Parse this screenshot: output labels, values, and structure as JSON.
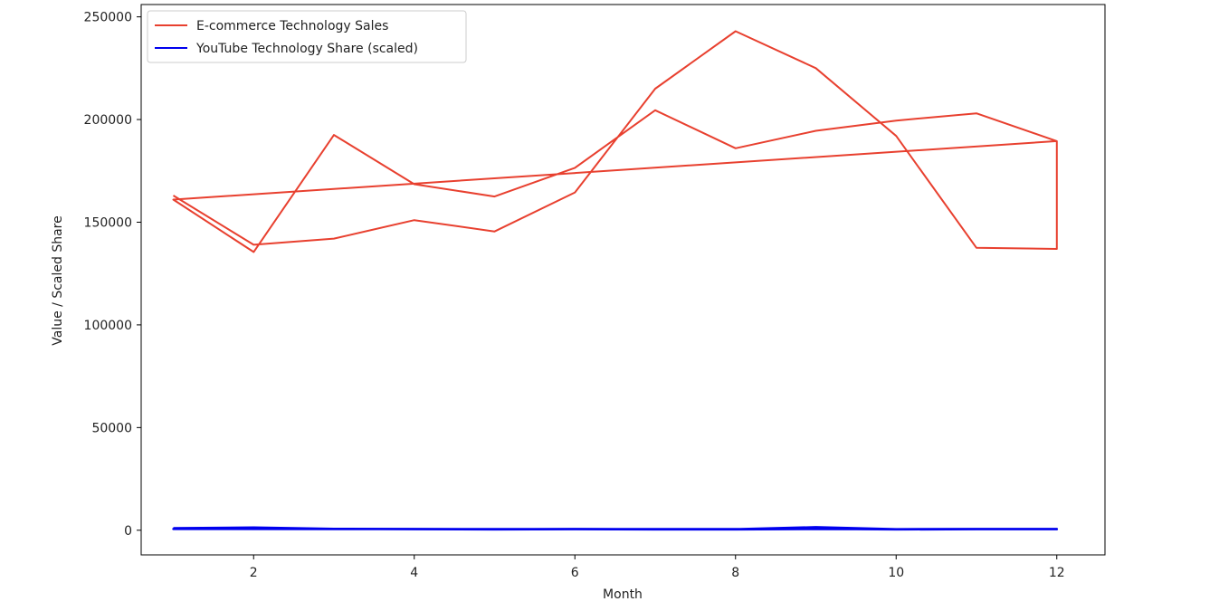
{
  "chart_data": {
    "type": "line",
    "title": "",
    "xlabel": "Month",
    "ylabel": "Value / Scaled Share",
    "xlim": [
      0.6,
      12.6
    ],
    "ylim": [
      -12000,
      256000
    ],
    "x_ticks": [
      2,
      4,
      6,
      8,
      10,
      12
    ],
    "y_ticks": [
      0,
      50000,
      100000,
      150000,
      200000,
      250000
    ],
    "grid": false,
    "legend": "top-left",
    "series": [
      {
        "name": "E-commerce Technology Sales",
        "color": "#e8402f",
        "points": [
          [
            1,
            163000
          ],
          [
            2,
            139000
          ],
          [
            3,
            142000
          ],
          [
            4,
            151000
          ],
          [
            5,
            145500
          ],
          [
            6,
            164500
          ],
          [
            7,
            215000
          ],
          [
            8,
            243000
          ],
          [
            9,
            225000
          ],
          [
            10,
            192000
          ],
          [
            11,
            137500
          ],
          [
            12,
            137000
          ],
          [
            12,
            189500
          ],
          [
            11,
            203000
          ],
          [
            10,
            199500
          ],
          [
            9,
            194500
          ],
          [
            8,
            186000
          ],
          [
            7,
            204500
          ],
          [
            6,
            176500
          ],
          [
            5,
            162500
          ],
          [
            4,
            168500
          ],
          [
            3,
            192500
          ],
          [
            2,
            135500
          ],
          [
            1,
            161000
          ],
          [
            12,
            189500
          ]
        ]
      },
      {
        "name": "YouTube Technology Share (scaled)",
        "color": "#0000ee",
        "points": [
          [
            1,
            1000
          ],
          [
            2,
            1300
          ],
          [
            3,
            700
          ],
          [
            4,
            600
          ],
          [
            5,
            500
          ],
          [
            6,
            600
          ],
          [
            7,
            500
          ],
          [
            8,
            500
          ],
          [
            9,
            1500
          ],
          [
            10,
            500
          ],
          [
            11,
            600
          ],
          [
            12,
            600
          ],
          [
            12,
            500
          ],
          [
            11,
            500
          ],
          [
            10,
            400
          ],
          [
            9,
            600
          ],
          [
            8,
            400
          ],
          [
            7,
            400
          ],
          [
            6,
            500
          ],
          [
            5,
            400
          ],
          [
            4,
            500
          ],
          [
            3,
            600
          ],
          [
            2,
            800
          ],
          [
            1,
            600
          ],
          [
            12,
            500
          ]
        ]
      }
    ]
  }
}
